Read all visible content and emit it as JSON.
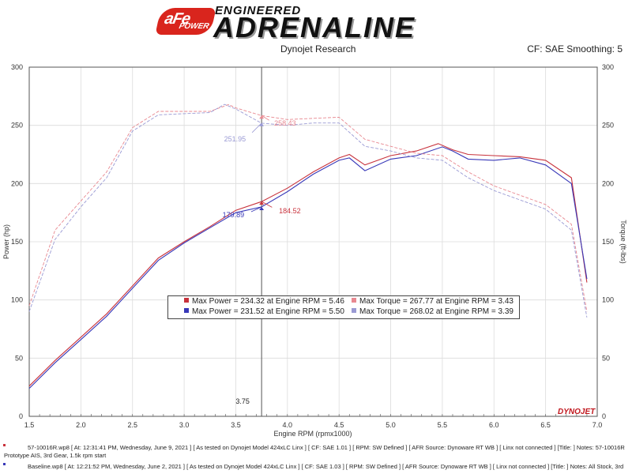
{
  "header": {
    "logo_text": "aFe",
    "logo_subtext": "POWER",
    "brand_top": "ENGINEERED",
    "brand_main": "ADRENALINE",
    "left_title": "Dynojet Research",
    "right_title": "CF: SAE Smoothing: 5"
  },
  "colors": {
    "run1_power": "#c8323c",
    "run2_power": "#3838b8",
    "run1_torque": "#e88890",
    "run2_torque": "#9a9ad4"
  },
  "chart_data": {
    "type": "line",
    "xlabel": "Engine RPM (rpmx1000)",
    "ylabel_left": "Power (hp)",
    "ylabel_right": "Torque (ft-lbs)",
    "xlim": [
      1.5,
      7.0
    ],
    "ylim": [
      0,
      300
    ],
    "x_ticks": [
      "1.5",
      "2.0",
      "2.5",
      "3.0",
      "3.5",
      "4.0",
      "4.5",
      "5.0",
      "5.5",
      "6.0",
      "6.5",
      "7.0"
    ],
    "y_ticks": [
      "0",
      "50",
      "100",
      "150",
      "200",
      "250",
      "300"
    ],
    "cursor_rpm": 3.75,
    "cursor_label": "3.75",
    "series": [
      {
        "name": "Max Power",
        "run": "57-10016R",
        "kind": "power",
        "x": [
          1.5,
          1.75,
          2.0,
          2.25,
          2.5,
          2.75,
          3.0,
          3.25,
          3.5,
          3.75,
          4.0,
          4.25,
          4.5,
          4.6,
          4.75,
          5.0,
          5.25,
          5.46,
          5.6,
          5.75,
          6.0,
          6.25,
          6.5,
          6.75,
          6.9
        ],
        "y": [
          26,
          48,
          68,
          88,
          112,
          136,
          150,
          163,
          177,
          184.5,
          196,
          210,
          222,
          225,
          216,
          224,
          228,
          234.3,
          229,
          225,
          224,
          223,
          220,
          205,
          115
        ]
      },
      {
        "name": "Max Power",
        "run": "Baseline",
        "kind": "power",
        "x": [
          1.5,
          1.75,
          2.0,
          2.25,
          2.5,
          2.75,
          3.0,
          3.25,
          3.5,
          3.75,
          4.0,
          4.25,
          4.5,
          4.6,
          4.75,
          5.0,
          5.25,
          5.5,
          5.6,
          5.75,
          6.0,
          6.25,
          6.5,
          6.75,
          6.9
        ],
        "y": [
          24,
          46,
          66,
          86,
          110,
          134,
          149,
          162,
          175,
          179.9,
          193,
          208,
          220,
          222,
          211,
          221,
          224,
          231.5,
          228,
          221,
          220,
          222,
          216,
          200,
          118
        ]
      },
      {
        "name": "Max Torque",
        "run": "57-10016R",
        "kind": "torque",
        "x": [
          1.5,
          1.75,
          2.0,
          2.25,
          2.5,
          2.75,
          3.0,
          3.25,
          3.43,
          3.5,
          3.75,
          4.0,
          4.25,
          4.5,
          4.75,
          5.0,
          5.25,
          5.5,
          5.75,
          6.0,
          6.25,
          6.5,
          6.75,
          6.9
        ],
        "y": [
          95,
          160,
          185,
          210,
          248,
          262,
          262,
          262,
          267.8,
          265,
          258.4,
          255,
          256,
          257,
          238,
          232,
          226,
          224,
          210,
          198,
          190,
          182,
          165,
          90
        ]
      },
      {
        "name": "Max Torque",
        "run": "Baseline",
        "kind": "torque",
        "x": [
          1.5,
          1.75,
          2.0,
          2.25,
          2.5,
          2.75,
          3.0,
          3.25,
          3.39,
          3.5,
          3.75,
          4.0,
          4.25,
          4.5,
          4.75,
          5.0,
          5.25,
          5.5,
          5.75,
          6.0,
          6.25,
          6.5,
          6.75,
          6.9
        ],
        "y": [
          90,
          152,
          180,
          205,
          245,
          259,
          260,
          261,
          268,
          264,
          251.9,
          250,
          252,
          252,
          232,
          228,
          222,
          220,
          205,
          194,
          186,
          178,
          160,
          85
        ]
      }
    ],
    "annotations": [
      {
        "label": "184.52",
        "x": 3.75,
        "y": 184.52,
        "color": "run1_power"
      },
      {
        "label": "179.89",
        "x": 3.75,
        "y": 179.89,
        "color": "run2_power"
      },
      {
        "label": "258.43",
        "x": 3.75,
        "y": 258.43,
        "color": "run1_torque"
      },
      {
        "label": "251.95",
        "x": 3.75,
        "y": 251.95,
        "color": "run2_torque"
      }
    ]
  },
  "legend": {
    "row1_power": "Max Power = 234.32 at Engine RPM = 5.46",
    "row1_torque": "Max Torque = 267.77 at Engine RPM = 3.43",
    "row2_power": "Max Power = 231.52 at Engine RPM = 5.50",
    "row2_torque": "Max Torque = 268.02 at Engine RPM = 3.39"
  },
  "footer": {
    "run1_line1": "57-10016R.wp8 [ At: 12:31:41 PM, Wednesday, June 9, 2021 ] [ As tested on Dynojet Model 424xLC Linx ] [ CF: SAE 1.01 ] [ RPM: SW Defined ] [ AFR Source: Dynoware RT WB ] [ Linx not connected ] [Title: ]  Notes: 57-10016R",
    "run1_line2": "Prototype AIS, 3rd Gear, 1.5k rpm start",
    "run2_line1": "Baseline.wp8 [ At: 12:21:52 PM, Wednesday, June 2, 2021 ] [ As tested on Dynojet Model 424xLC Linx ] [ CF: SAE 1.03 ] [ RPM: SW Defined ] [ AFR Source: Dynoware RT WB ] [ Linx not connected ] [Title: ]  Notes: All Stock, 3rd",
    "watermark": "DYNOJET"
  }
}
